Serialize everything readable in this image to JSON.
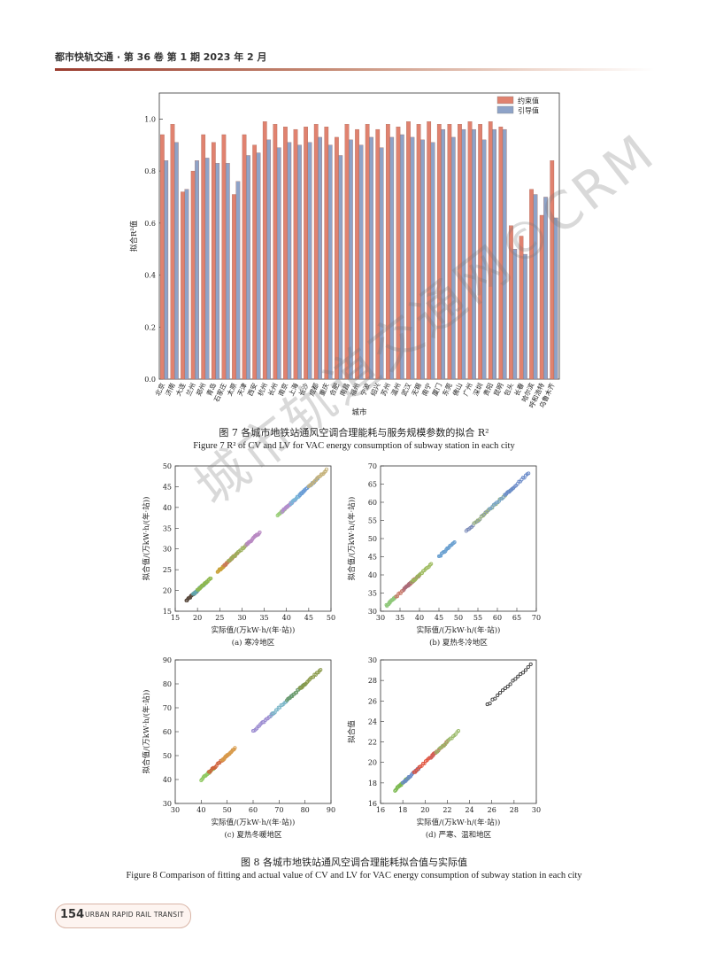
{
  "header": {
    "running_title": "都市快轨交通 · 第 36 卷 第 1 期 2023 年 2 月"
  },
  "figure7": {
    "caption_cn": "图 7 各城市地铁站通风空调合理能耗与服务规模参数的拟合 R²",
    "caption_en": "Figure 7  R² of CV and LV for VAC energy consumption of subway station in each city"
  },
  "figure8": {
    "caption_cn": "图 8 各城市地铁站通风空调合理能耗拟合值与实际值",
    "caption_en": "Figure 8  Comparison of fitting and actual value of CV and LV for VAC energy consumption of subway station in each city"
  },
  "watermark": {
    "text": "城市轨道交通网©CRM"
  },
  "footer": {
    "page_number": "154",
    "journal_en": "URBAN RAPID RAIL TRANSIT"
  },
  "colors": {
    "series1": "#e0826f",
    "series2": "#8ea3c8",
    "accent": "#9a3b2e"
  },
  "chart_data": [
    {
      "type": "bar",
      "xlabel": "城市",
      "ylabel": "拟合R²值",
      "ylim": [
        0,
        1.1
      ],
      "yticks": [
        "0.0",
        "0.2",
        "0.4",
        "0.6",
        "0.8",
        "1.0"
      ],
      "legend_position": "top-right",
      "categories": [
        "北京",
        "济南",
        "大连",
        "兰州",
        "郑州",
        "青岛",
        "石家庄",
        "太原",
        "天津",
        "西安",
        "杭州",
        "长州",
        "南京",
        "上海",
        "长沙",
        "成都",
        "重庆",
        "合肥",
        "南昌",
        "福州",
        "宁波",
        "绍兴",
        "苏州",
        "温州",
        "武汉",
        "无锡",
        "南宁",
        "厦门",
        "东莞",
        "佛山",
        "广州",
        "深圳",
        "贵阳",
        "昆明",
        "包头",
        "长春",
        "哈尔滨",
        "呼和浩特",
        "乌鲁木齐"
      ],
      "series": [
        {
          "name": "约束值",
          "values": [
            0.94,
            0.98,
            0.72,
            0.8,
            0.94,
            0.91,
            0.94,
            0.71,
            0.94,
            0.9,
            0.99,
            0.98,
            0.97,
            0.96,
            0.97,
            0.98,
            0.97,
            0.93,
            0.98,
            0.96,
            0.98,
            0.96,
            0.98,
            0.97,
            0.99,
            0.98,
            0.99,
            0.98,
            0.98,
            0.98,
            0.99,
            0.98,
            0.99,
            0.97,
            0.59,
            0.55,
            0.73,
            0.63,
            0.84
          ]
        },
        {
          "name": "引导值",
          "values": [
            0.84,
            0.91,
            0.73,
            0.84,
            0.85,
            0.83,
            0.83,
            0.76,
            0.86,
            0.87,
            0.92,
            0.89,
            0.91,
            0.9,
            0.91,
            0.93,
            0.9,
            0.86,
            0.92,
            0.9,
            0.93,
            0.89,
            0.93,
            0.94,
            0.93,
            0.92,
            0.91,
            0.96,
            0.93,
            0.96,
            0.96,
            0.92,
            0.96,
            0.96,
            0.5,
            0.48,
            0.71,
            0.7,
            0.62
          ]
        }
      ]
    },
    {
      "type": "scatter",
      "subtitle": "(a) 寒冷地区",
      "xlabel": "实际值/(万kW·h/(年·站))",
      "ylabel": "拟合值/(万kW·h/(年·站))",
      "xlim": [
        15,
        50
      ],
      "ylim": [
        15,
        50
      ],
      "xticks": [
        "15",
        "20",
        "25",
        "30",
        "35",
        "40",
        "45",
        "50"
      ],
      "yticks": [
        "15",
        "20",
        "25",
        "30",
        "35",
        "40",
        "45",
        "50"
      ],
      "clusters": [
        {
          "x0": 17.5,
          "x1": 20,
          "color": "#5a4a3e"
        },
        {
          "x0": 19,
          "x1": 22,
          "color": "#62a8b0"
        },
        {
          "x0": 20,
          "x1": 23,
          "color": "#8fb84e"
        },
        {
          "x0": 24.5,
          "x1": 27,
          "color": "#c9a23a"
        },
        {
          "x0": 26,
          "x1": 29,
          "color": "#c97a5a"
        },
        {
          "x0": 27,
          "x1": 31,
          "color": "#9cb05c"
        },
        {
          "x0": 31,
          "x1": 34,
          "color": "#b887c2"
        },
        {
          "x0": 38,
          "x1": 41,
          "color": "#9bcf7a"
        },
        {
          "x0": 39,
          "x1": 42,
          "color": "#b38bd0"
        },
        {
          "x0": 41,
          "x1": 44,
          "color": "#7ab6d8"
        },
        {
          "x0": 43,
          "x1": 47,
          "color": "#6a9ad6"
        },
        {
          "x0": 45,
          "x1": 49,
          "color": "#c5b27a"
        }
      ]
    },
    {
      "type": "scatter",
      "subtitle": "(b) 夏热冬冷地区",
      "xlabel": "实际值/(万kW·h/(年·站))",
      "ylabel": "拟合值/(万kW·h/(年·站))",
      "xlim": [
        30,
        70
      ],
      "ylim": [
        30,
        70
      ],
      "xticks": [
        "30",
        "35",
        "40",
        "45",
        "50",
        "55",
        "60",
        "65",
        "70"
      ],
      "yticks": [
        "30",
        "35",
        "40",
        "45",
        "50",
        "55",
        "60",
        "65",
        "70"
      ],
      "clusters": [
        {
          "x0": 31.5,
          "x1": 34,
          "color": "#8fc87a"
        },
        {
          "x0": 34,
          "x1": 39,
          "color": "#c97a6a"
        },
        {
          "x0": 36,
          "x1": 40,
          "color": "#a86a7a"
        },
        {
          "x0": 38,
          "x1": 43,
          "color": "#9cba5c"
        },
        {
          "x0": 45,
          "x1": 49,
          "color": "#6aa0d0"
        },
        {
          "x0": 52,
          "x1": 58,
          "color": "#7a8ab8"
        },
        {
          "x0": 54,
          "x1": 62,
          "color": "#a0b87a"
        },
        {
          "x0": 58,
          "x1": 64,
          "color": "#7aa6c8"
        },
        {
          "x0": 62,
          "x1": 68,
          "color": "#6a8ac8"
        }
      ]
    },
    {
      "type": "scatter",
      "subtitle": "(c) 夏热冬暖地区",
      "xlabel": "实际值/(万kW·h/(年·站))",
      "ylabel": "拟合值/(万kW·h/(年·站))",
      "xlim": [
        30,
        90
      ],
      "ylim": [
        30,
        90
      ],
      "xticks": [
        "30",
        "40",
        "50",
        "60",
        "70",
        "80",
        "90"
      ],
      "yticks": [
        "30",
        "40",
        "50",
        "60",
        "70",
        "80",
        "90"
      ],
      "clusters": [
        {
          "x0": 40,
          "x1": 45,
          "color": "#8fc860"
        },
        {
          "x0": 43,
          "x1": 50,
          "color": "#d0603a"
        },
        {
          "x0": 48,
          "x1": 53,
          "color": "#d89a4a"
        },
        {
          "x0": 60,
          "x1": 68,
          "color": "#9a8ad0"
        },
        {
          "x0": 67,
          "x1": 75,
          "color": "#7ab6c8"
        },
        {
          "x0": 73,
          "x1": 80,
          "color": "#6a9a6a"
        },
        {
          "x0": 78,
          "x1": 86,
          "color": "#8a9a4a"
        }
      ]
    },
    {
      "type": "scatter",
      "subtitle": "(d) 严寒、温和地区",
      "xlabel": "实际值/(万kW·h/(年·站))",
      "ylabel": "拟合值",
      "xlim": [
        16,
        30
      ],
      "ylim": [
        16,
        30
      ],
      "xticks": [
        "16",
        "18",
        "20",
        "22",
        "24",
        "26",
        "28",
        "30"
      ],
      "yticks": [
        "16",
        "18",
        "20",
        "22",
        "24",
        "26",
        "28",
        "30"
      ],
      "clusters": [
        {
          "x0": 17.3,
          "x1": 18.5,
          "color": "#7ab84e"
        },
        {
          "x0": 18,
          "x1": 19.5,
          "color": "#6a8ac8"
        },
        {
          "x0": 19,
          "x1": 21,
          "color": "#e0503a"
        },
        {
          "x0": 20.5,
          "x1": 22,
          "color": "#d0605a"
        },
        {
          "x0": 21,
          "x1": 23,
          "color": "#9aba6a"
        },
        {
          "x0": 25.6,
          "x1": 29.5,
          "color": "#3a3a3a"
        }
      ]
    }
  ]
}
